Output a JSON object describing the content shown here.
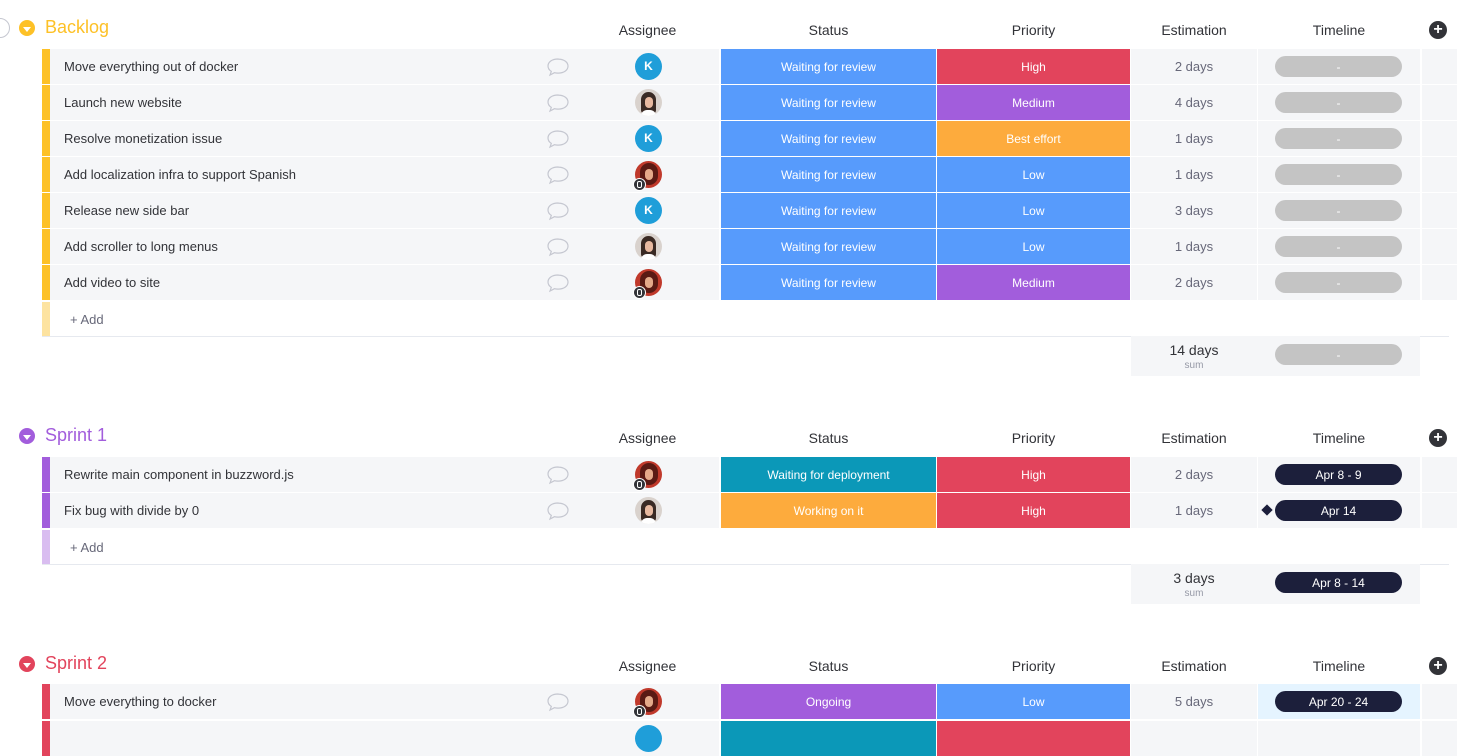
{
  "columns": {
    "assignee": "Assignee",
    "status": "Status",
    "priority": "Priority",
    "estimation": "Estimation",
    "timeline": "Timeline"
  },
  "add_item_label": "+ Add",
  "sum_label": "sum",
  "colors": {
    "backlog": "#fdc127",
    "sprint1": "#a25ddc",
    "sprint2": "#e2445c",
    "waiting_review": "#579bfc",
    "waiting_deploy": "#0b98b8",
    "working": "#fdab3d",
    "ongoing": "#a25ddc",
    "high": "#e2445c",
    "medium": "#a25ddc",
    "best_effort": "#fdab3d",
    "low": "#579bfc"
  },
  "backlog": {
    "title": "Backlog",
    "rows": [
      {
        "name": "Move everything out of docker",
        "assignee": "K",
        "status": "Waiting for review",
        "priority": "High",
        "estimation": "2 days",
        "timeline": "-"
      },
      {
        "name": "Launch new website",
        "assignee": "",
        "status": "Waiting for review",
        "priority": "Medium",
        "estimation": "4 days",
        "timeline": "-"
      },
      {
        "name": "Resolve monetization issue",
        "assignee": "K",
        "status": "Waiting for review",
        "priority": "Best effort",
        "estimation": "1 days",
        "timeline": "-"
      },
      {
        "name": "Add localization infra to support Spanish",
        "assignee": "",
        "status": "Waiting for review",
        "priority": "Low",
        "estimation": "1 days",
        "timeline": "-"
      },
      {
        "name": "Release new side bar",
        "assignee": "K",
        "status": "Waiting for review",
        "priority": "Low",
        "estimation": "3 days",
        "timeline": "-"
      },
      {
        "name": "Add scroller to long menus",
        "assignee": "",
        "status": "Waiting for review",
        "priority": "Low",
        "estimation": "1 days",
        "timeline": "-"
      },
      {
        "name": "Add video to site",
        "assignee": "",
        "status": "Waiting for review",
        "priority": "Medium",
        "estimation": "2 days",
        "timeline": "-"
      }
    ],
    "sum": {
      "estimation": "14 days",
      "timeline": "-"
    }
  },
  "sprint1": {
    "title": "Sprint 1",
    "rows": [
      {
        "name": "Rewrite main component in buzzword.js",
        "status": "Waiting for deployment",
        "priority": "High",
        "estimation": "2 days",
        "timeline": "Apr 8 - 9"
      },
      {
        "name": "Fix bug with divide by 0",
        "status": "Working on it",
        "priority": "High",
        "estimation": "1 days",
        "timeline": "Apr 14"
      }
    ],
    "sum": {
      "estimation": "3 days",
      "timeline": "Apr 8 - 14"
    }
  },
  "sprint2": {
    "title": "Sprint 2",
    "rows": [
      {
        "name": "Move everything to docker",
        "status": "Ongoing",
        "priority": "Low",
        "estimation": "5 days",
        "timeline": "Apr 20 - 24"
      }
    ]
  }
}
